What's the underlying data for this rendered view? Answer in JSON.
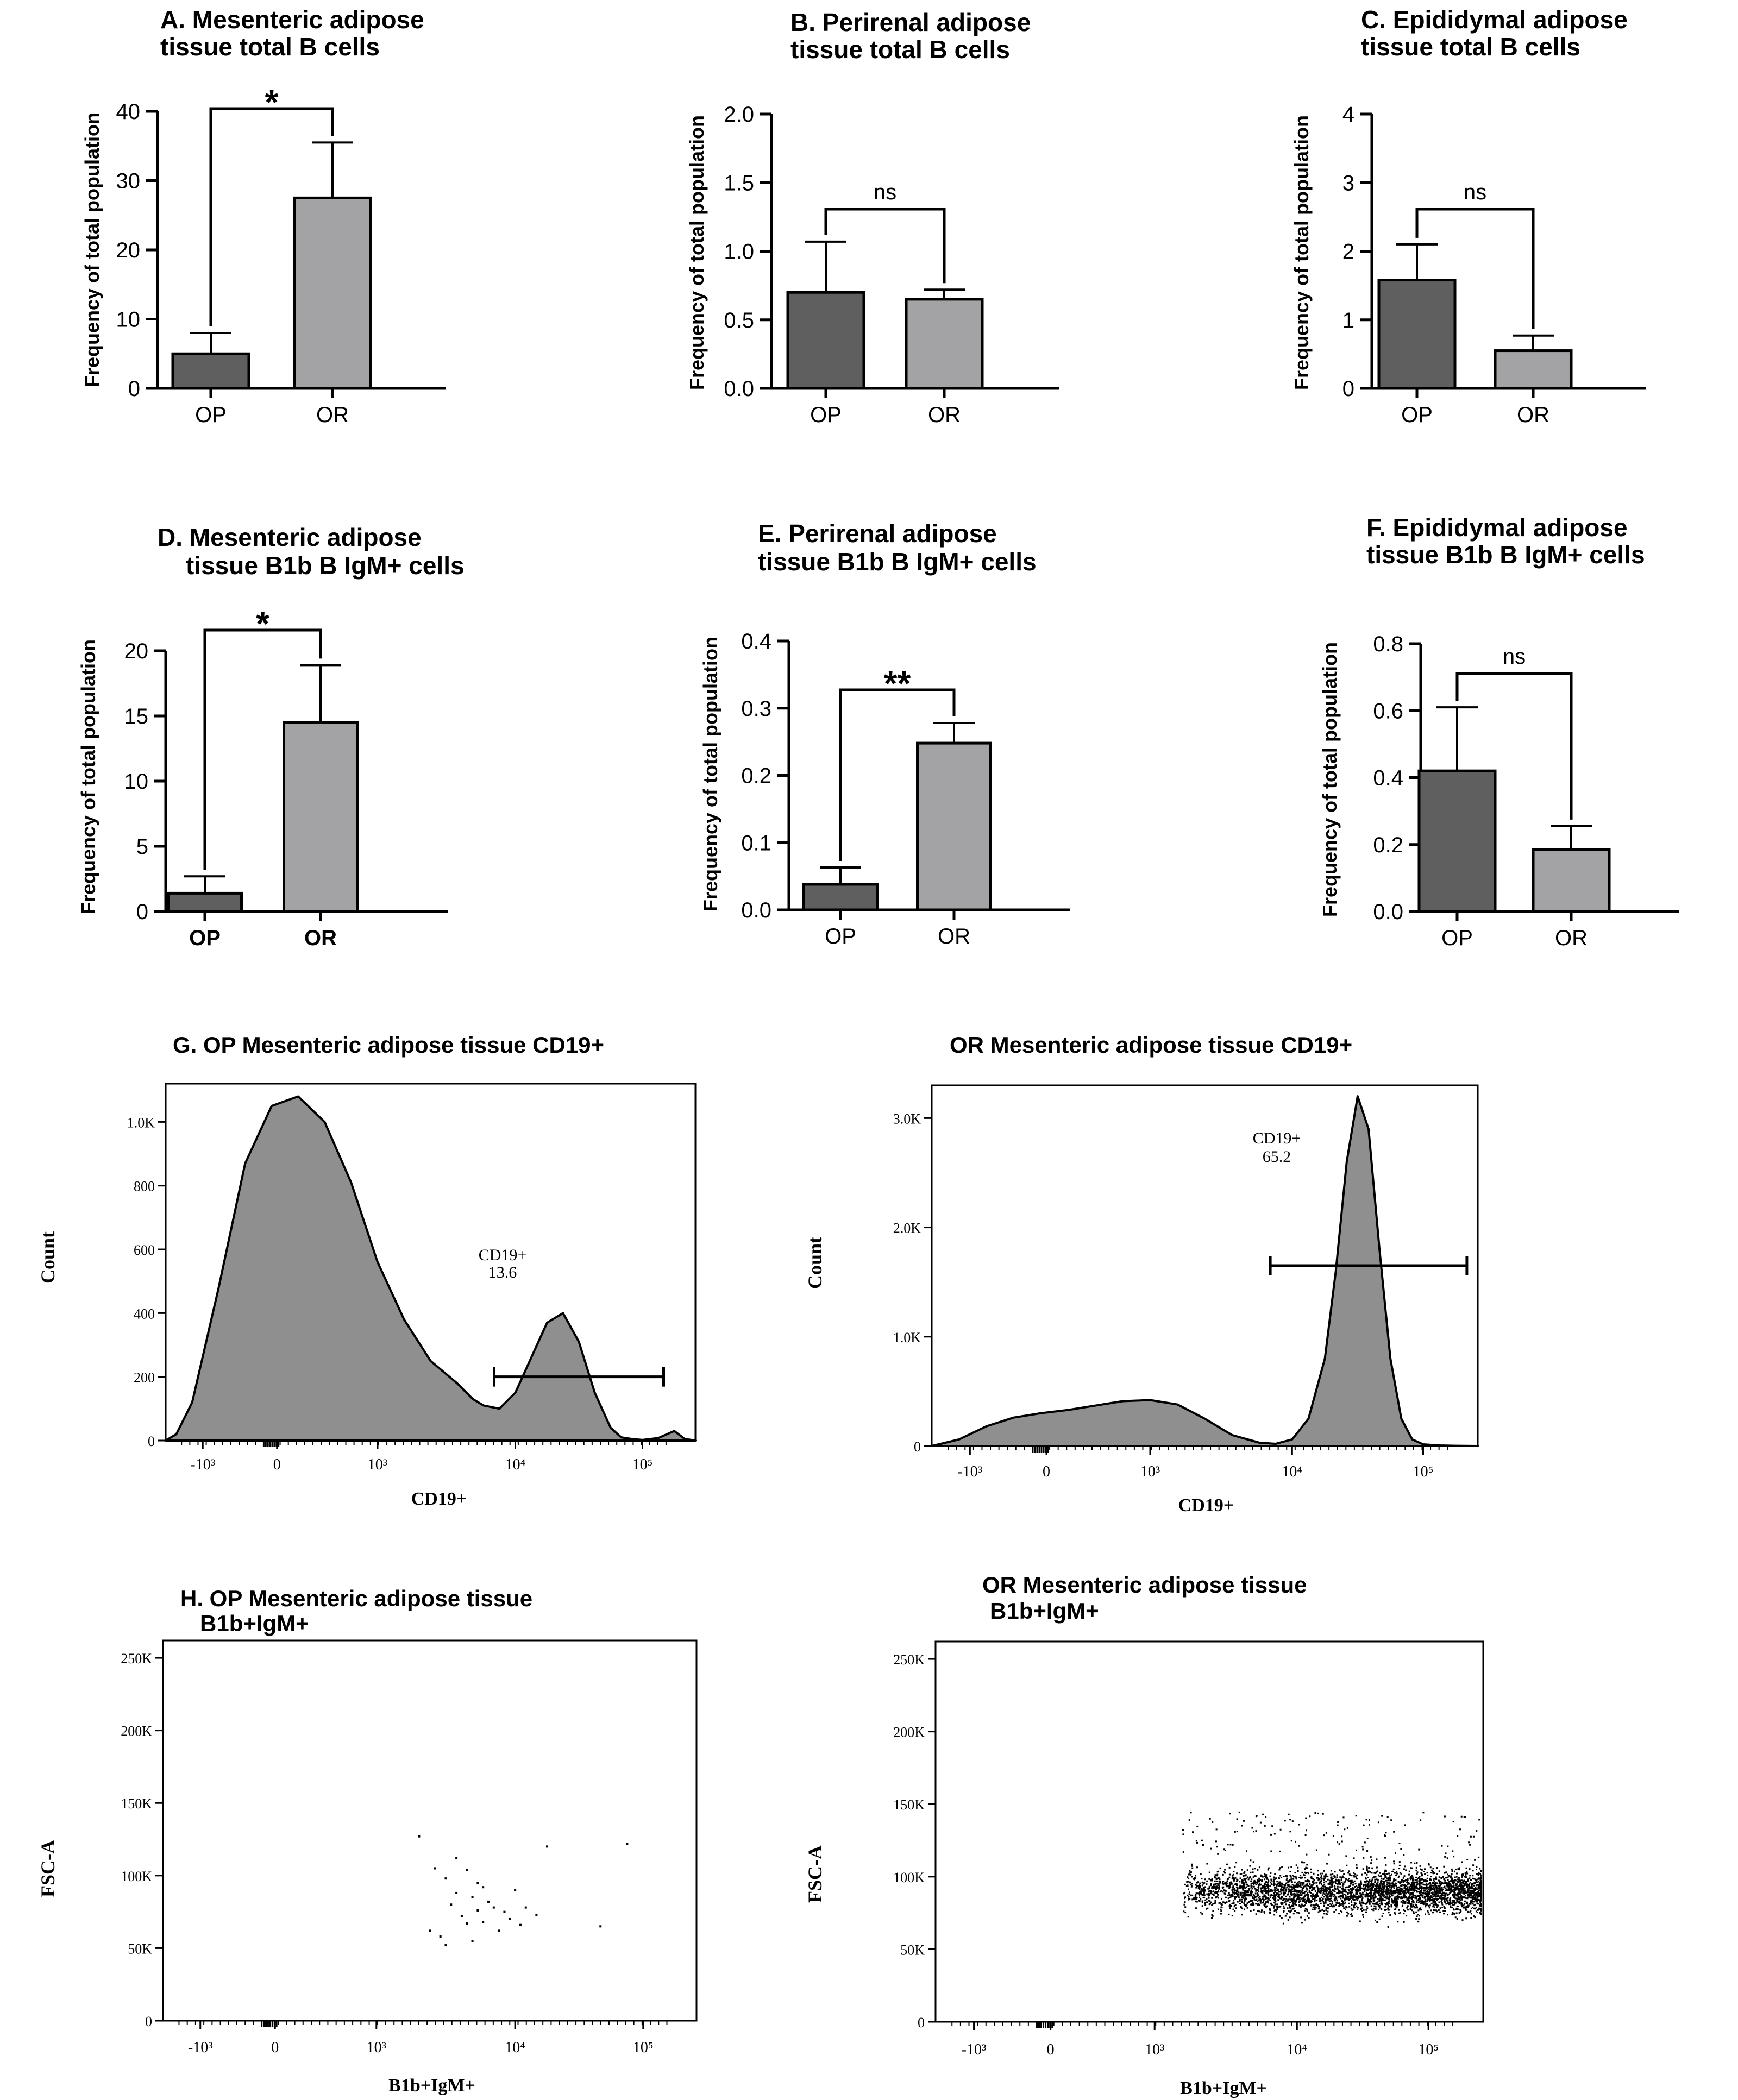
{
  "chart_data": [
    {
      "id": "A",
      "type": "bar",
      "title_lines": [
        "A. Mesenteric adipose",
        "tissue total B cells"
      ],
      "ylabel": "Frequency of total population",
      "categories": [
        "OP",
        "OR"
      ],
      "values": [
        5.0,
        27.5
      ],
      "errors": [
        3.0,
        8.0
      ],
      "ylim": [
        0,
        40
      ],
      "yticks": [
        "0",
        "10",
        "20",
        "30",
        "40"
      ],
      "significance": "*",
      "sig_style": "star"
    },
    {
      "id": "B",
      "type": "bar",
      "title_lines": [
        "B. Perirenal adipose",
        "tissue total B cells"
      ],
      "ylabel": "Frequency of total population",
      "categories": [
        "OP",
        "OR"
      ],
      "values": [
        0.7,
        0.65
      ],
      "errors": [
        0.37,
        0.07
      ],
      "ylim": [
        0,
        2.0
      ],
      "yticks": [
        "0.0",
        "0.5",
        "1.0",
        "1.5",
        "2.0"
      ],
      "significance": "ns",
      "sig_style": "text"
    },
    {
      "id": "C",
      "type": "bar",
      "title_lines": [
        "C. Epididymal adipose",
        "tissue total B cells"
      ],
      "ylabel": "Frequency of total population",
      "categories": [
        "OP",
        "OR"
      ],
      "values": [
        1.58,
        0.55
      ],
      "errors": [
        0.52,
        0.22
      ],
      "ylim": [
        0,
        4
      ],
      "yticks": [
        "0",
        "1",
        "2",
        "3",
        "4"
      ],
      "significance": "ns",
      "sig_style": "text"
    },
    {
      "id": "D",
      "type": "bar",
      "title_lines": [
        "D. Mesenteric adipose",
        "tissue B1b B IgM+ cells"
      ],
      "ylabel": "Frequency of total population",
      "categories": [
        "OP",
        "OR"
      ],
      "values": [
        1.4,
        14.5
      ],
      "errors": [
        1.3,
        4.4
      ],
      "ylim": [
        0,
        20
      ],
      "yticks": [
        "0",
        "5",
        "10",
        "15",
        "20"
      ],
      "significance": "*",
      "sig_style": "star"
    },
    {
      "id": "E",
      "type": "bar",
      "title_lines": [
        "E. Perirenal adipose",
        "tissue B1b B IgM+ cells"
      ],
      "ylabel": "Frequency of total population",
      "categories": [
        "OP",
        "OR"
      ],
      "values": [
        0.038,
        0.248
      ],
      "errors": [
        0.025,
        0.03
      ],
      "ylim": [
        0,
        0.4
      ],
      "yticks": [
        "0.0",
        "0.1",
        "0.2",
        "0.3",
        "0.4"
      ],
      "significance": "**",
      "sig_style": "star"
    },
    {
      "id": "F",
      "type": "bar",
      "title_lines": [
        "F. Epididymal adipose",
        "tissue B1b B IgM+ cells"
      ],
      "ylabel": "Frequency of total population",
      "categories": [
        "OP",
        "OR"
      ],
      "values": [
        0.42,
        0.185
      ],
      "errors": [
        0.19,
        0.07
      ],
      "ylim": [
        0,
        0.8
      ],
      "yticks": [
        "0.0",
        "0.2",
        "0.4",
        "0.6",
        "0.8"
      ],
      "significance": "ns",
      "sig_style": "text"
    },
    {
      "id": "G1",
      "type": "area",
      "title": "G. OP Mesenteric adipose tissue  CD19+",
      "xlabel": "CD19+",
      "ylabel": "Count",
      "yticks": [
        "0",
        "200",
        "400",
        "600",
        "800",
        "1.0K"
      ],
      "ytick_values": [
        0,
        200,
        400,
        600,
        800,
        1000
      ],
      "ylim": [
        0,
        1120
      ],
      "xticks": [
        "-10³",
        "0",
        "10³",
        "10⁴",
        "10⁵"
      ],
      "x": [
        0,
        0.02,
        0.05,
        0.1,
        0.15,
        0.2,
        0.25,
        0.3,
        0.35,
        0.4,
        0.45,
        0.5,
        0.55,
        0.58,
        0.6,
        0.63,
        0.66,
        0.69,
        0.72,
        0.75,
        0.78,
        0.81,
        0.84,
        0.86,
        0.88,
        0.9,
        0.93,
        0.96,
        0.98,
        1.0
      ],
      "counts": [
        0,
        20,
        120,
        480,
        870,
        1050,
        1080,
        1000,
        810,
        560,
        380,
        250,
        180,
        130,
        110,
        100,
        150,
        260,
        370,
        400,
        310,
        150,
        40,
        10,
        5,
        2,
        8,
        30,
        5,
        0
      ],
      "gate_label": "CD19+",
      "gate_value": "13.6",
      "gate_range": [
        0.62,
        0.94
      ],
      "gate_level": 200
    },
    {
      "id": "G2",
      "type": "area",
      "title": "OR Mesenteric adipose tissue CD19+",
      "xlabel": "CD19+",
      "ylabel": "Count",
      "yticks": [
        "0",
        "1.0K",
        "2.0K",
        "3.0K"
      ],
      "ytick_values": [
        0,
        1000,
        2000,
        3000
      ],
      "ylim": [
        0,
        3300
      ],
      "xticks": [
        "-10³",
        "0",
        "10³",
        "10⁴",
        "10⁵"
      ],
      "x": [
        0,
        0.05,
        0.1,
        0.15,
        0.2,
        0.25,
        0.3,
        0.35,
        0.4,
        0.45,
        0.5,
        0.55,
        0.6,
        0.63,
        0.66,
        0.69,
        0.72,
        0.74,
        0.76,
        0.78,
        0.8,
        0.82,
        0.84,
        0.86,
        0.88,
        0.9,
        0.93,
        0.96,
        1.0
      ],
      "counts": [
        0,
        60,
        180,
        260,
        300,
        330,
        370,
        410,
        420,
        380,
        250,
        100,
        30,
        20,
        60,
        250,
        800,
        1600,
        2600,
        3200,
        2900,
        1800,
        800,
        250,
        60,
        15,
        5,
        2,
        0
      ],
      "gate_label": "CD19+",
      "gate_value": "65.2",
      "gate_range": [
        0.62,
        0.98
      ],
      "gate_level": 1650
    },
    {
      "id": "H1",
      "type": "scatter",
      "title_lines": [
        "H. OP Mesenteric adipose tissue",
        "B1b+IgM+"
      ],
      "xlabel": "B1b+IgM+",
      "ylabel": "FSC-A",
      "yticks": [
        "0",
        "50K",
        "100K",
        "150K",
        "200K",
        "250K"
      ],
      "ytick_values": [
        0,
        50000,
        100000,
        150000,
        200000,
        250000
      ],
      "ylim": [
        0,
        262000
      ],
      "xticks": [
        "-10³",
        "0",
        "10³",
        "10⁴",
        "10⁵"
      ],
      "points": [
        [
          0.48,
          127000
        ],
        [
          0.51,
          105000
        ],
        [
          0.53,
          98000
        ],
        [
          0.55,
          112000
        ],
        [
          0.57,
          104000
        ],
        [
          0.59,
          95000
        ],
        [
          0.5,
          62000
        ],
        [
          0.52,
          58000
        ],
        [
          0.54,
          80000
        ],
        [
          0.56,
          72000
        ],
        [
          0.58,
          85000
        ],
        [
          0.6,
          68000
        ],
        [
          0.62,
          78000
        ],
        [
          0.64,
          75000
        ],
        [
          0.66,
          90000
        ],
        [
          0.63,
          62000
        ],
        [
          0.57,
          67000
        ],
        [
          0.61,
          82000
        ],
        [
          0.65,
          70000
        ],
        [
          0.68,
          78000
        ],
        [
          0.7,
          73000
        ],
        [
          0.55,
          88000
        ],
        [
          0.59,
          76000
        ],
        [
          0.53,
          52000
        ],
        [
          0.72,
          120000
        ],
        [
          0.87,
          122000
        ],
        [
          0.82,
          65000
        ],
        [
          0.6,
          92000
        ],
        [
          0.67,
          66000
        ],
        [
          0.58,
          55000
        ]
      ]
    },
    {
      "id": "H2",
      "type": "scatter",
      "title_lines": [
        "OR Mesenteric adipose tissue",
        "B1b+IgM+"
      ],
      "xlabel": "B1b+IgM+",
      "ylabel": "FSC-A",
      "yticks": [
        "0",
        "50K",
        "100K",
        "150K",
        "200K",
        "250K"
      ],
      "ytick_values": [
        0,
        50000,
        100000,
        150000,
        200000,
        250000
      ],
      "ylim": [
        0,
        262000
      ],
      "xticks": [
        "-10³",
        "0",
        "10³",
        "10⁴",
        "10⁵"
      ],
      "cloud": {
        "x_range": [
          0.45,
          1.0
        ],
        "y_center": 90000,
        "y_spread": 11000,
        "n": 3600,
        "outliers": 160,
        "outlier_y_range": [
          105000,
          145000
        ]
      }
    }
  ]
}
